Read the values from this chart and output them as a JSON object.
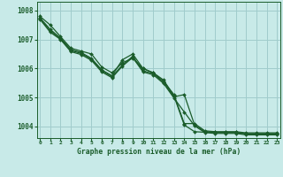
{
  "title": "Graphe pression niveau de la mer (hPa)",
  "bg_color": "#c8eae8",
  "grid_color": "#a0cccc",
  "line_color": "#1a5c2a",
  "x_labels": [
    "0",
    "1",
    "2",
    "3",
    "4",
    "5",
    "6",
    "7",
    "8",
    "9",
    "10",
    "11",
    "12",
    "13",
    "14",
    "15",
    "16",
    "17",
    "18",
    "19",
    "20",
    "21",
    "22",
    "23"
  ],
  "ylim": [
    1003.6,
    1008.3
  ],
  "yticks": [
    1004,
    1005,
    1006,
    1007,
    1008
  ],
  "series": [
    [
      1007.8,
      1007.5,
      1007.1,
      1006.7,
      1006.6,
      1006.5,
      1006.05,
      1005.85,
      1006.2,
      1006.35,
      1006.0,
      1005.85,
      1005.6,
      1005.05,
      1004.05,
      1003.82,
      1003.8,
      1003.8,
      1003.8,
      1003.8,
      1003.75,
      1003.75,
      1003.75,
      1003.75
    ],
    [
      1007.75,
      1007.35,
      1007.05,
      1006.65,
      1006.55,
      1006.35,
      1005.95,
      1005.75,
      1006.3,
      1006.5,
      1006.0,
      1005.85,
      1005.55,
      1005.1,
      1004.1,
      1004.1,
      1003.85,
      1003.82,
      1003.82,
      1003.82,
      1003.78,
      1003.78,
      1003.78,
      1003.78
    ],
    [
      1007.72,
      1007.3,
      1007.02,
      1006.62,
      1006.52,
      1006.32,
      1005.92,
      1005.72,
      1006.12,
      1006.42,
      1005.92,
      1005.82,
      1005.52,
      1005.02,
      1005.1,
      1004.05,
      1003.82,
      1003.79,
      1003.79,
      1003.79,
      1003.74,
      1003.74,
      1003.74,
      1003.74
    ],
    [
      1007.7,
      1007.25,
      1007.0,
      1006.58,
      1006.48,
      1006.28,
      1005.88,
      1005.68,
      1006.08,
      1006.38,
      1005.88,
      1005.78,
      1005.48,
      1004.98,
      1004.5,
      1004.02,
      1003.79,
      1003.76,
      1003.76,
      1003.76,
      1003.71,
      1003.71,
      1003.71,
      1003.71
    ]
  ]
}
